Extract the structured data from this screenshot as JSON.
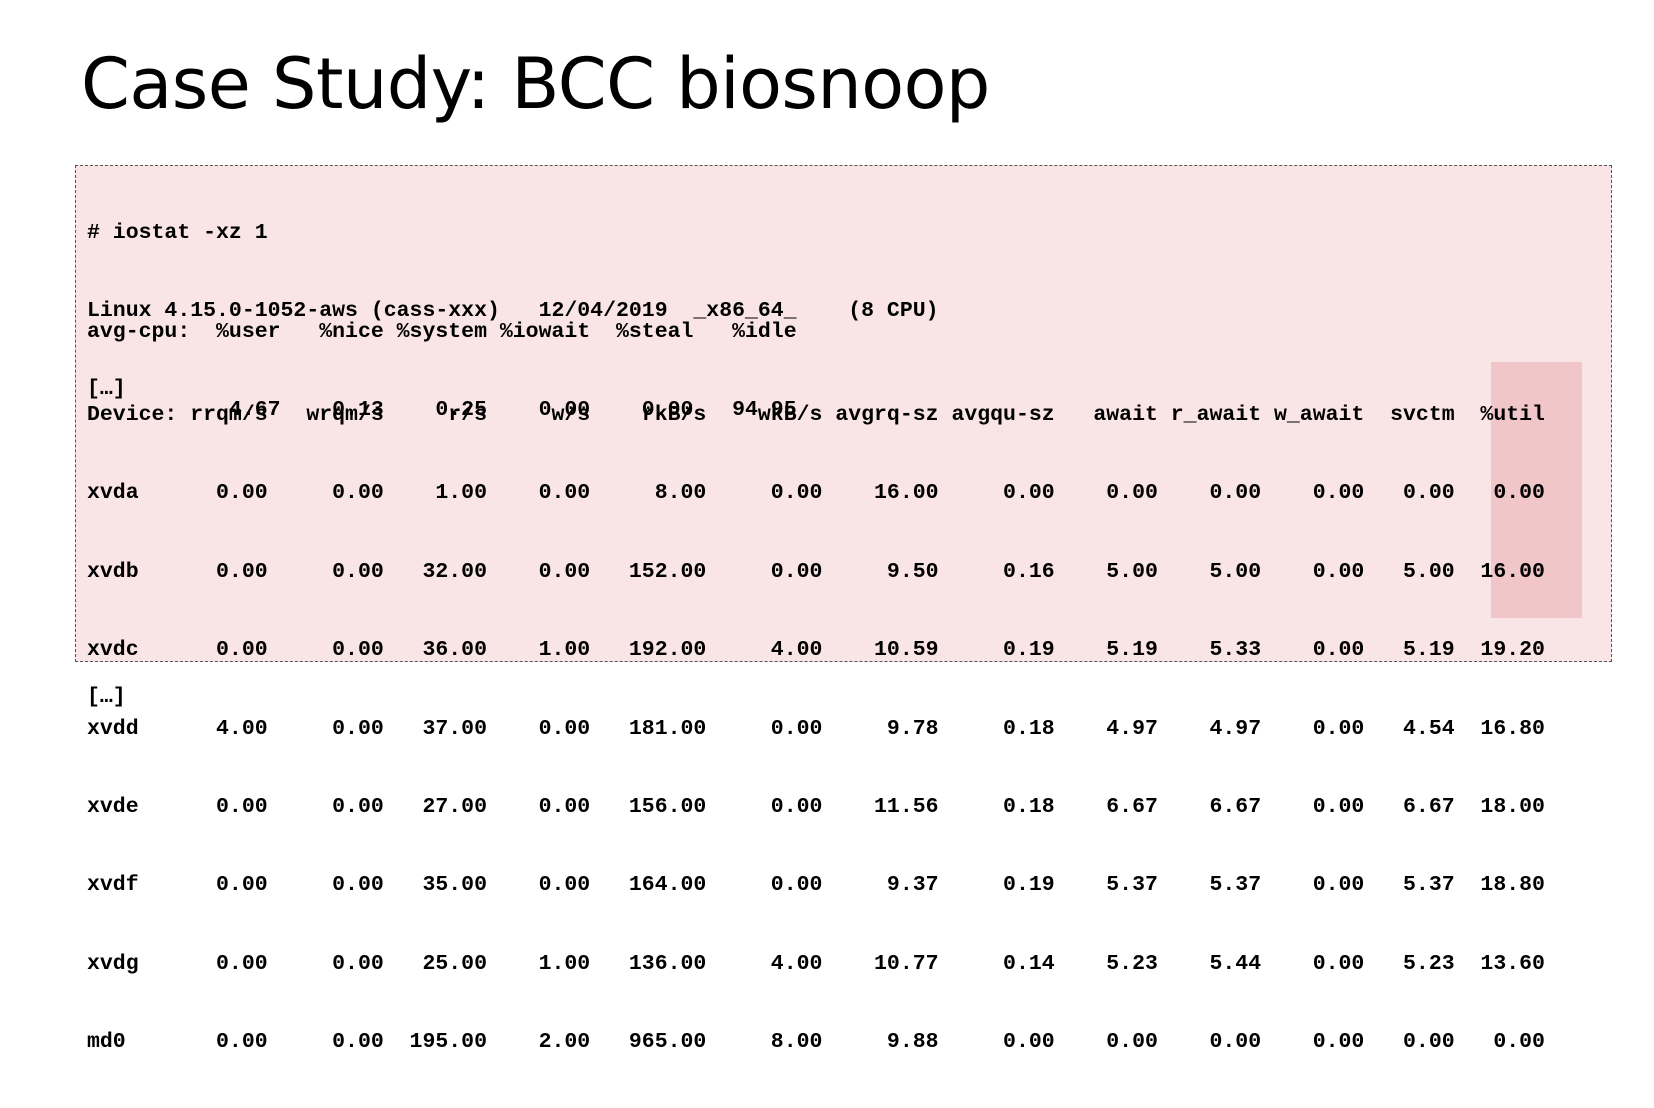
{
  "slide": {
    "title": "Case Study: BCC biosnoop"
  },
  "terminal": {
    "command": "# iostat -xz 1",
    "system_info": "Linux 4.15.0-1052-aws (cass-xxx)   12/04/2019  _x86_64_    (8 CPU)",
    "ellipsis_top": "[…]",
    "cpu_header": "avg-cpu:  %user   %nice %system %iowait  %steal   %idle",
    "cpu_values": "           4.67    0.13    0.25    0.00    0.00   94.95",
    "device_header": "Device: rrqm/s   wrqm/s     r/s     w/s    rkB/s    wkB/s avgrq-sz avgqu-sz   await r_await w_await  svctm  %util",
    "device_rows": [
      "xvda      0.00     0.00    1.00    0.00     8.00     0.00    16.00     0.00    0.00    0.00    0.00   0.00   0.00",
      "xvdb      0.00     0.00   32.00    0.00   152.00     0.00     9.50     0.16    5.00    5.00    0.00   5.00  16.00",
      "xvdc      0.00     0.00   36.00    1.00   192.00     4.00    10.59     0.19    5.19    5.33    0.00   5.19  19.20",
      "xvdd      4.00     0.00   37.00    0.00   181.00     0.00     9.78     0.18    4.97    4.97    0.00   4.54  16.80",
      "xvde      0.00     0.00   27.00    0.00   156.00     0.00    11.56     0.18    6.67    6.67    0.00   6.67  18.00",
      "xvdf      0.00     0.00   35.00    0.00   164.00     0.00     9.37     0.19    5.37    5.37    0.00   5.37  18.80",
      "xvdg      0.00     0.00   25.00    1.00   136.00     4.00    10.77     0.14    5.23    5.44    0.00   5.23  13.60",
      "md0       0.00     0.00  195.00    2.00   965.00     8.00     9.88     0.00    0.00    0.00    0.00   0.00   0.00"
    ],
    "ellipsis_bottom": "[…]"
  },
  "colors": {
    "terminal_background": "#f9e5e6",
    "util_column_highlight": "#f0c6c8",
    "text": "#000000"
  }
}
